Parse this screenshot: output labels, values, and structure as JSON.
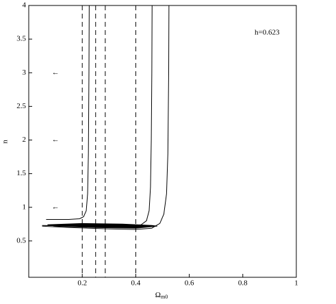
{
  "chart_data": {
    "type": "contour",
    "x_label": "Ω",
    "x_label_sub": "m0",
    "y_label": "n",
    "annotation": "h=0.623",
    "xlim": [
      0,
      1
    ],
    "ylim": [
      0,
      4
    ],
    "xticks": [
      0.2,
      0.4,
      0.6,
      0.8,
      1
    ],
    "yticks": [
      0.5,
      1,
      1.5,
      2,
      2.5,
      3,
      3.5,
      4
    ],
    "color": "#000000",
    "series": [
      {
        "x": [
          0.065,
          0.15,
          0.19,
          0.205,
          0.215,
          0.22,
          0.223,
          0.225,
          0.226
        ],
        "y": [
          0.82,
          0.82,
          0.83,
          0.86,
          0.95,
          1.2,
          1.8,
          3,
          4
        ]
      },
      {
        "x": [
          0.05,
          0.2,
          0.35,
          0.42,
          0.44,
          0.45,
          0.455,
          0.458,
          0.46,
          0.461
        ],
        "y": [
          0.73,
          0.72,
          0.72,
          0.74,
          0.8,
          0.95,
          1.3,
          2,
          3,
          4
        ]
      },
      {
        "x": [
          0.05,
          0.15,
          0.3,
          0.4,
          0.46,
          0.49,
          0.505,
          0.515,
          0.52,
          0.523,
          0.524
        ],
        "y": [
          0.72,
          0.7,
          0.68,
          0.67,
          0.69,
          0.76,
          0.9,
          1.2,
          1.8,
          3,
          4
        ]
      }
    ],
    "filled_region": {
      "x": [
        0.07,
        0.2,
        0.35,
        0.46,
        0.48,
        0.4,
        0.25,
        0.1
      ],
      "y": [
        0.74,
        0.76,
        0.75,
        0.73,
        0.72,
        0.69,
        0.7,
        0.72
      ]
    },
    "dashed_lines": [
      0.2,
      0.25,
      0.286,
      0.4
    ],
    "arrows": [
      {
        "text": "←",
        "x": 0.1,
        "y": 3
      },
      {
        "text": "←",
        "x": 0.1,
        "y": 2
      },
      {
        "text": "←",
        "x": 0.1,
        "y": 1
      }
    ]
  }
}
